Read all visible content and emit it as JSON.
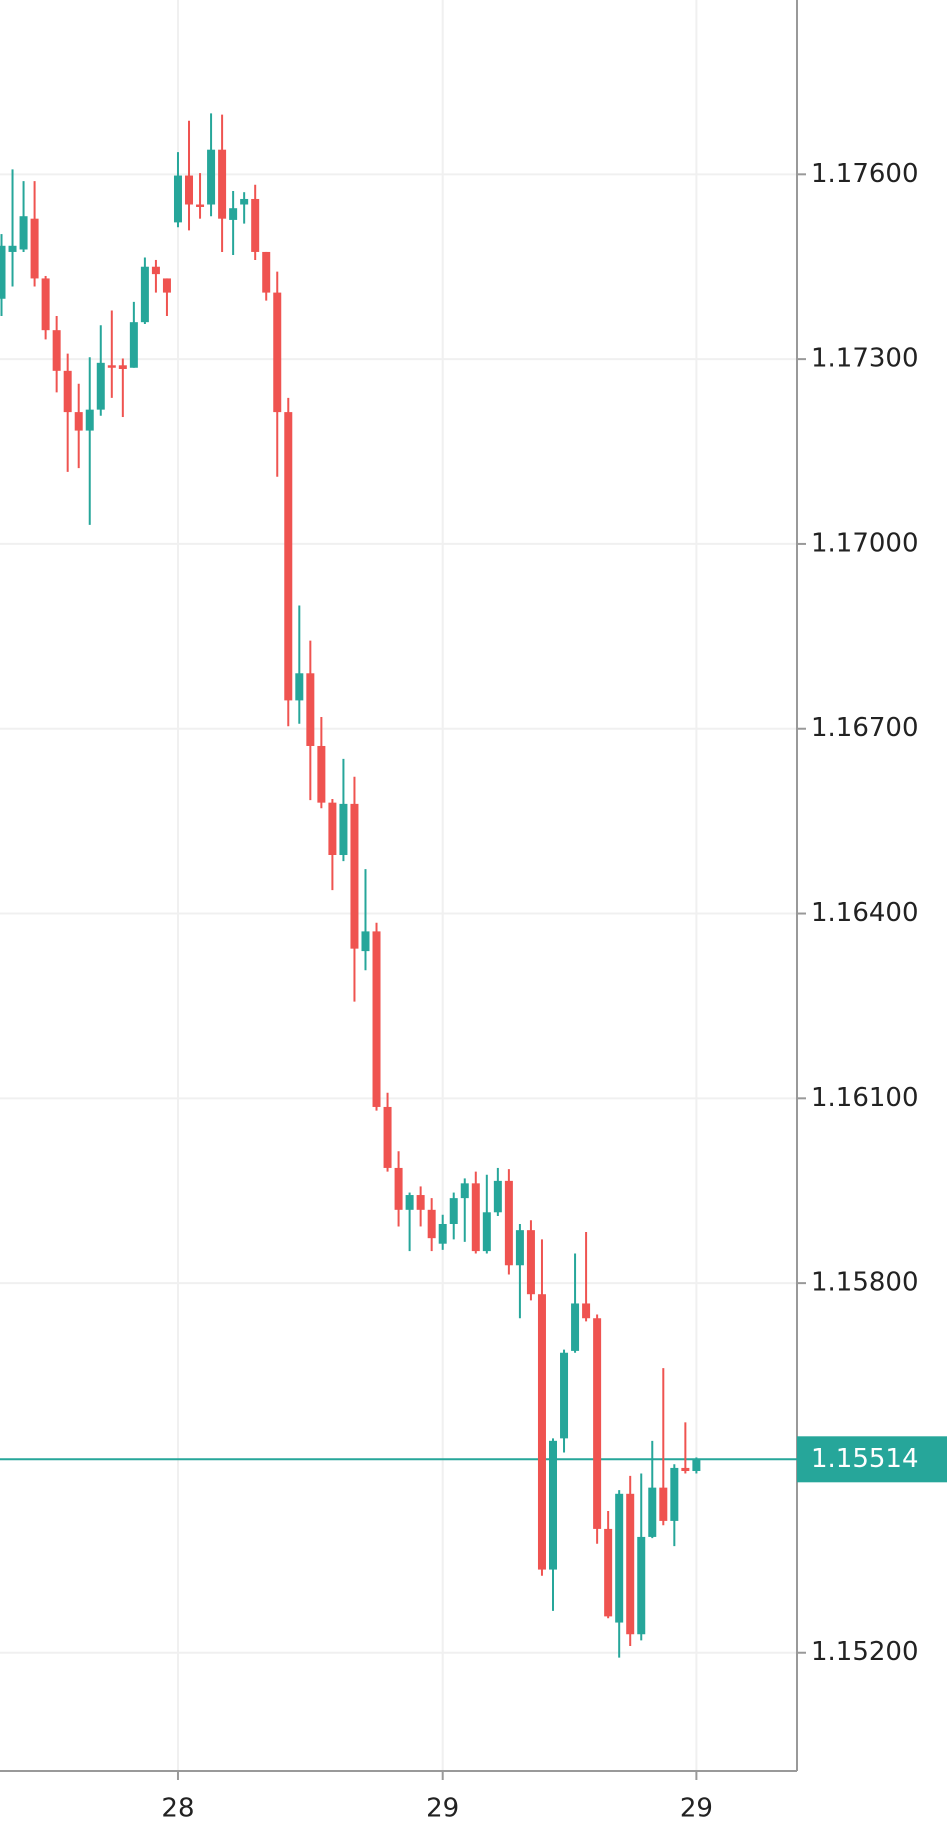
{
  "chart_data": {
    "type": "candlestick",
    "categories": [
      null,
      null,
      null,
      null,
      null,
      null,
      null,
      null,
      null,
      null,
      null,
      null,
      null,
      null,
      null,
      null,
      "28",
      null,
      null,
      null,
      null,
      null,
      null,
      null,
      null,
      null,
      null,
      null,
      null,
      null,
      null,
      null,
      null,
      null,
      null,
      null,
      null,
      null,
      null,
      null,
      "29",
      null,
      null,
      null,
      null,
      null,
      null,
      null,
      null,
      null,
      null,
      null,
      null,
      null,
      null,
      null,
      null,
      null,
      null,
      null,
      null,
      null,
      null,
      "29"
    ],
    "open": [
      1.17398,
      1.17474,
      1.17478,
      1.17528,
      1.17431,
      1.17347,
      1.17281,
      1.17214,
      1.17184,
      1.17218,
      1.1729,
      1.1729,
      1.17286,
      1.1736,
      1.1745,
      1.17431,
      1.17522,
      1.17598,
      1.17551,
      1.17551,
      1.1764,
      1.17526,
      1.17551,
      1.1756,
      1.17474,
      1.17408,
      1.17214,
      1.16746,
      1.1679,
      1.16672,
      1.1658,
      1.16495,
      1.16578,
      1.16339,
      1.16371,
      1.16086,
      1.15987,
      1.15919,
      1.15943,
      1.15919,
      1.15864,
      1.15896,
      1.15938,
      1.15962,
      1.15852,
      1.15915,
      1.15966,
      1.15829,
      1.15886,
      1.15782,
      1.15335,
      1.15548,
      1.1569,
      1.15767,
      1.15743,
      1.15401,
      1.15249,
      1.15458,
      1.1523,
      1.15388,
      1.15468,
      1.15414,
      1.155,
      1.15495
    ],
    "high": [
      1.17503,
      1.17608,
      1.17589,
      1.17589,
      1.17435,
      1.1737,
      1.17309,
      1.1726,
      1.17303,
      1.17355,
      1.17379,
      1.17301,
      1.17393,
      1.17465,
      1.17461,
      1.17431,
      1.17636,
      1.17687,
      1.17602,
      1.17699,
      1.17697,
      1.17573,
      1.17571,
      1.17583,
      1.17474,
      1.17442,
      1.17237,
      1.169,
      1.16843,
      1.16719,
      1.16586,
      1.16651,
      1.16622,
      1.16472,
      1.16385,
      1.16109,
      1.16014,
      1.15947,
      1.15957,
      1.15938,
      1.15911,
      1.15947,
      1.1597,
      1.15981,
      1.15976,
      1.15987,
      1.15985,
      1.15896,
      1.15902,
      1.15871,
      1.15548,
      1.15692,
      1.15848,
      1.15883,
      1.15749,
      1.1543,
      1.15464,
      1.15487,
      1.15491,
      1.15544,
      1.15662,
      1.15506,
      1.15574,
      1.15517
    ],
    "low": [
      1.1737,
      1.17418,
      1.17474,
      1.17418,
      1.17332,
      1.17246,
      1.17117,
      1.17123,
      1.17031,
      1.17208,
      1.17237,
      1.17206,
      1.17286,
      1.17357,
      1.17408,
      1.1737,
      1.17514,
      1.17509,
      1.17528,
      1.17532,
      1.17474,
      1.17469,
      1.1752,
      1.17461,
      1.17395,
      1.17109,
      1.16704,
      1.16708,
      1.16584,
      1.16571,
      1.16438,
      1.16485,
      1.16257,
      1.16308,
      1.1608,
      1.15981,
      1.15892,
      1.15852,
      1.15892,
      1.15852,
      1.15854,
      1.15871,
      1.15867,
      1.15848,
      1.15848,
      1.15909,
      1.15814,
      1.15743,
      1.15772,
      1.15325,
      1.15268,
      1.15525,
      1.15687,
      1.15738,
      1.15377,
      1.15256,
      1.15192,
      1.15211,
      1.1522,
      1.15386,
      1.15407,
      1.15373,
      1.15491,
      1.15491
    ],
    "close": [
      1.17484,
      1.17484,
      1.17532,
      1.17431,
      1.17347,
      1.17281,
      1.17214,
      1.17184,
      1.17218,
      1.17294,
      1.17286,
      1.17284,
      1.1736,
      1.1745,
      1.17438,
      1.17408,
      1.17598,
      1.17551,
      1.17547,
      1.1764,
      1.17528,
      1.17545,
      1.1756,
      1.17474,
      1.17408,
      1.17214,
      1.16746,
      1.1679,
      1.16672,
      1.1658,
      1.16495,
      1.16578,
      1.16343,
      1.16371,
      1.16086,
      1.15987,
      1.15919,
      1.15943,
      1.15919,
      1.15873,
      1.15896,
      1.15938,
      1.15962,
      1.15852,
      1.15915,
      1.15966,
      1.15829,
      1.15886,
      1.15782,
      1.15335,
      1.15544,
      1.15687,
      1.15767,
      1.15743,
      1.15401,
      1.15259,
      1.15458,
      1.1523,
      1.15388,
      1.15468,
      1.15414,
      1.155,
      1.15495,
      1.15514
    ],
    "up_color": "#26a69a",
    "down_color": "#ef5350",
    "ylim": [
      1.15008,
      1.17883
    ],
    "yticks": [
      {
        "value": 1.152,
        "label": "1.15200"
      },
      {
        "value": 1.158,
        "label": "1.15800"
      },
      {
        "value": 1.161,
        "label": "1.16100"
      },
      {
        "value": 1.164,
        "label": "1.16400"
      },
      {
        "value": 1.167,
        "label": "1.16700"
      },
      {
        "value": 1.17,
        "label": "1.17000"
      },
      {
        "value": 1.173,
        "label": "1.17300"
      },
      {
        "value": 1.176,
        "label": "1.17600"
      }
    ],
    "last_price": {
      "value": 1.15514,
      "label": "1.15514"
    },
    "grid": true
  }
}
